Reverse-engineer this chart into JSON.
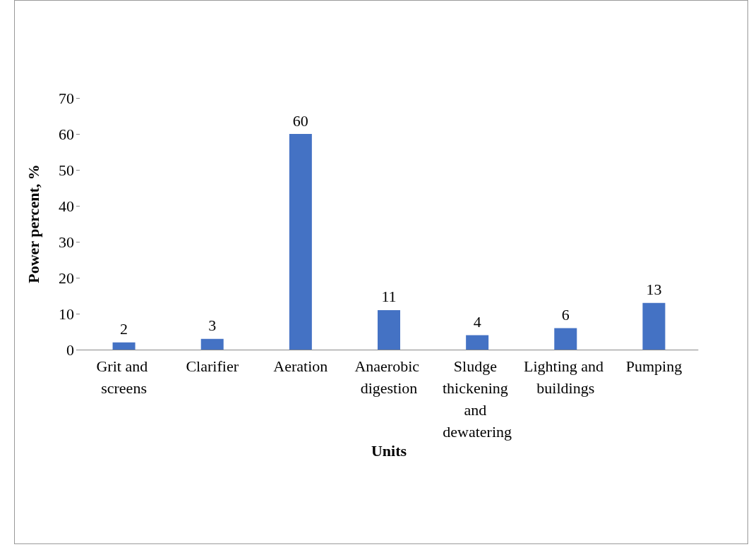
{
  "chart_data": {
    "type": "bar",
    "xlabel": "Units",
    "ylabel": "Power percent, %",
    "categories": [
      "Grit and screens",
      "Clarifier",
      "Aeration",
      "Anaerobic digestion",
      "Sludge thickening and dewatering",
      "Lighting and buildings",
      "Pumping"
    ],
    "values": [
      2,
      3,
      60,
      11,
      4,
      6,
      13
    ],
    "color": "#4472c4",
    "ylim": [
      0,
      70
    ],
    "yticks": [
      0,
      10,
      20,
      30,
      40,
      50,
      60,
      70
    ],
    "grid": false,
    "data_labels": true
  }
}
